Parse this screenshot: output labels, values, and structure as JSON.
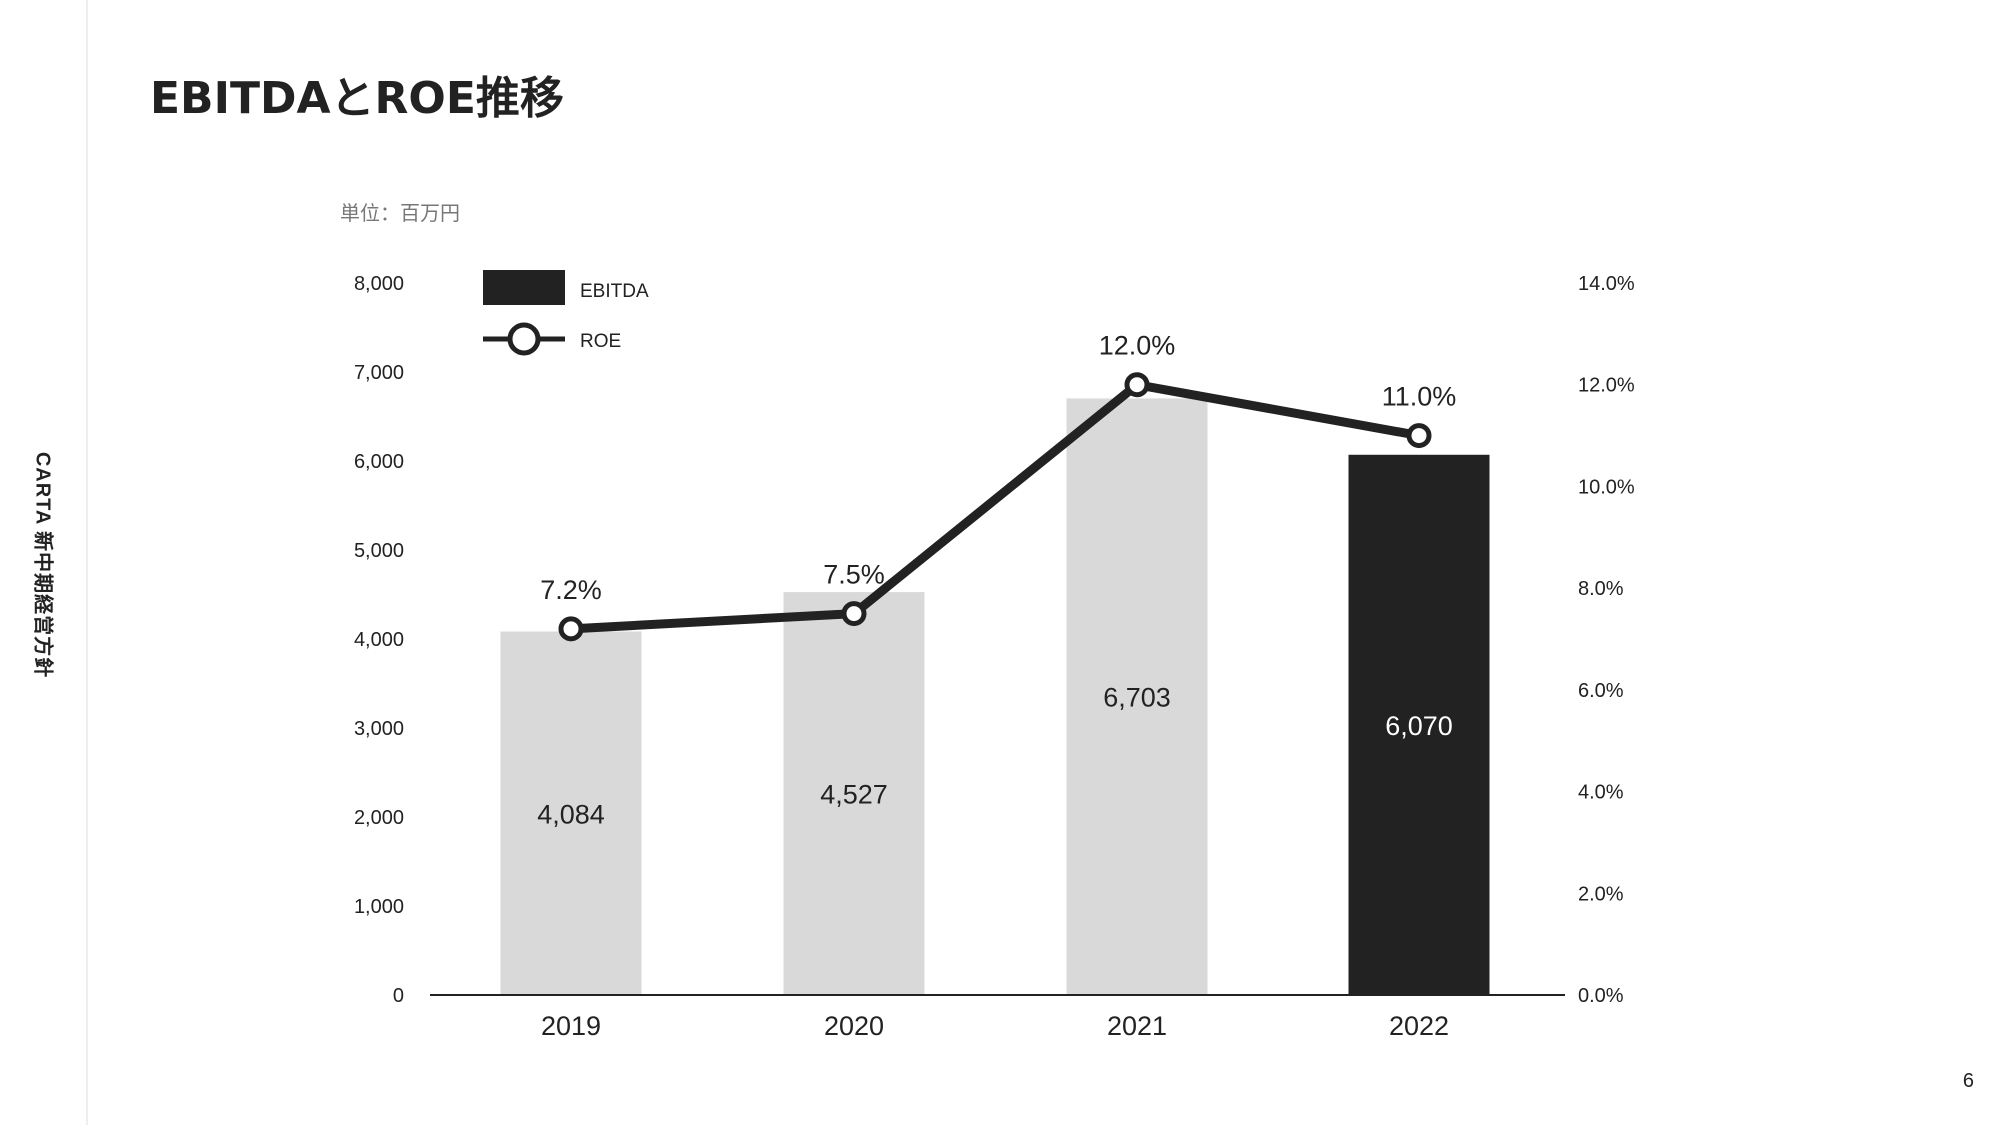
{
  "page": {
    "title": "EBITDAとROE推移",
    "side_label": "CARTA 新中期経営方針",
    "page_number": "6"
  },
  "colors": {
    "bar_normal": "#d9d9d9",
    "bar_highlight": "#222222",
    "line": "#222222",
    "text": "#222222",
    "unit_text": "#777777"
  },
  "chart_data": {
    "type": "bar",
    "unit_label": "単位：百万円",
    "categories": [
      "2019",
      "2020",
      "2021",
      "2022"
    ],
    "series": [
      {
        "name": "EBITDA",
        "type": "bar",
        "axis": "left",
        "values": [
          4084,
          4527,
          6703,
          6070
        ],
        "value_labels": [
          "4,084",
          "4,527",
          "6,703",
          "6,070"
        ],
        "highlight_index": 3
      },
      {
        "name": "ROE",
        "type": "line",
        "axis": "right",
        "values": [
          7.2,
          7.5,
          12.0,
          11.0
        ],
        "value_labels": [
          "7.2%",
          "7.5%",
          "12.0%",
          "11.0%"
        ]
      }
    ],
    "y_left": {
      "min": 0,
      "max": 8000,
      "ticks": [
        "0",
        "1,000",
        "2,000",
        "3,000",
        "4,000",
        "5,000",
        "6,000",
        "7,000",
        "8,000"
      ]
    },
    "y_right": {
      "min": 0,
      "max": 14,
      "ticks": [
        "0.0%",
        "2.0%",
        "4.0%",
        "6.0%",
        "8.0%",
        "10.0%",
        "12.0%",
        "14.0%"
      ]
    },
    "grid": false,
    "legend_position": "top-left"
  }
}
